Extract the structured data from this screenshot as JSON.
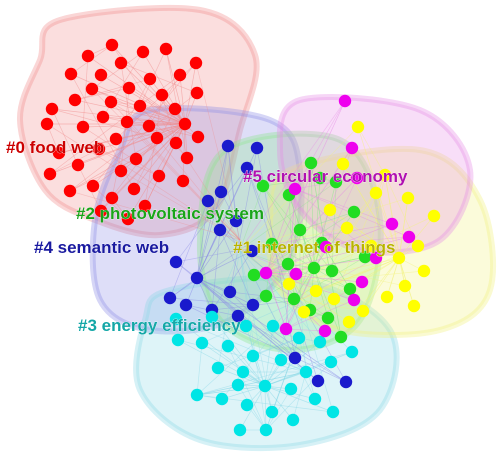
{
  "clusters": [
    {
      "id": "c0",
      "label": "#0 food web",
      "color": "#ff0000",
      "label_color": "#cc0000",
      "hull": "#f08a8a"
    },
    {
      "id": "c1",
      "label": "#1 internet of things",
      "color": "#ffff00",
      "label_color": "#b8b300",
      "hull": "#f2f27a"
    },
    {
      "id": "c2",
      "label": "#2 photovoltaic system",
      "color": "#22dd22",
      "label_color": "#1aa41a",
      "hull": "#8ae68a"
    },
    {
      "id": "c3",
      "label": "#3 energy efficiency",
      "color": "#00e5e5",
      "label_color": "#14a7a7",
      "hull": "#8ad8e6"
    },
    {
      "id": "c4",
      "label": "#4 semantic web",
      "color": "#1a1acc",
      "label_color": "#1a1aa0",
      "hull": "#8a8ae6"
    },
    {
      "id": "c5",
      "label": "#5 circular economy",
      "color": "#ee00ee",
      "label_color": "#b010b0",
      "hull": "#e68ae6"
    }
  ]
}
